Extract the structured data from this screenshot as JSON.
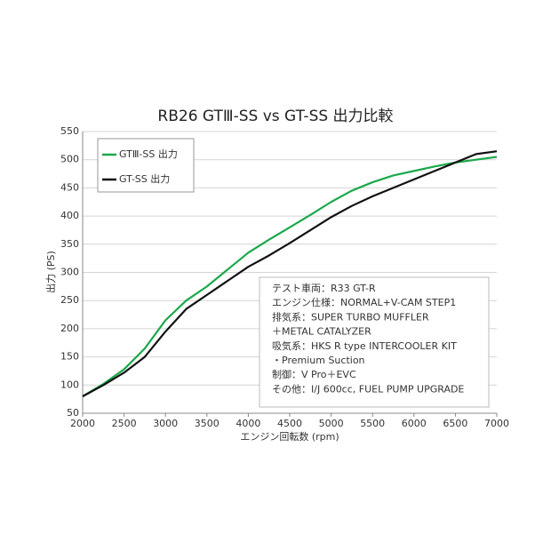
{
  "chart_data": {
    "type": "line",
    "title": "RB26 GTⅢ-SS vs GT-SS 出力比較",
    "x_label": "エンジン回転数 (rpm)",
    "y_label": "出力 (PS)",
    "x": [
      2000,
      2250,
      2500,
      2750,
      3000,
      3250,
      3500,
      3750,
      4000,
      4250,
      4500,
      4750,
      5000,
      5250,
      5500,
      5750,
      6000,
      6250,
      6500,
      6750,
      7000
    ],
    "series": [
      {
        "name": "GTⅢ-SS 出力",
        "color": "#1aa84a",
        "values": [
          80,
          102,
          128,
          165,
          215,
          250,
          275,
          305,
          335,
          358,
          380,
          402,
          425,
          445,
          460,
          472,
          480,
          488,
          495,
          500,
          505
        ]
      },
      {
        "name": "GT-SS 出力",
        "color": "#111111",
        "values": [
          80,
          100,
          122,
          150,
          195,
          235,
          260,
          285,
          310,
          330,
          352,
          375,
          398,
          418,
          435,
          450,
          465,
          480,
          495,
          510,
          515
        ]
      }
    ],
    "xlim": [
      2000,
      7000
    ],
    "xticks": [
      2000,
      2500,
      3000,
      3500,
      4000,
      4500,
      5000,
      5500,
      6000,
      6500,
      7000
    ],
    "ylim": [
      50,
      550
    ],
    "yticks": [
      50,
      100,
      150,
      200,
      250,
      300,
      350,
      400,
      450,
      500,
      550
    ],
    "grid": true,
    "legend": "upper-left",
    "annotations": [
      "テスト車両：R33 GT-R",
      "エンジン仕様：NORMAL+V-CAM STEP1",
      "排気系：SUPER TURBO MUFFLER",
      "＋METAL CATALYZER",
      "吸気系：HKS R type INTERCOOLER KIT",
      "・Premium Suction",
      "制御：V Pro＋EVC",
      "その他：I/J 600cc, FUEL PUMP UPGRADE"
    ]
  }
}
